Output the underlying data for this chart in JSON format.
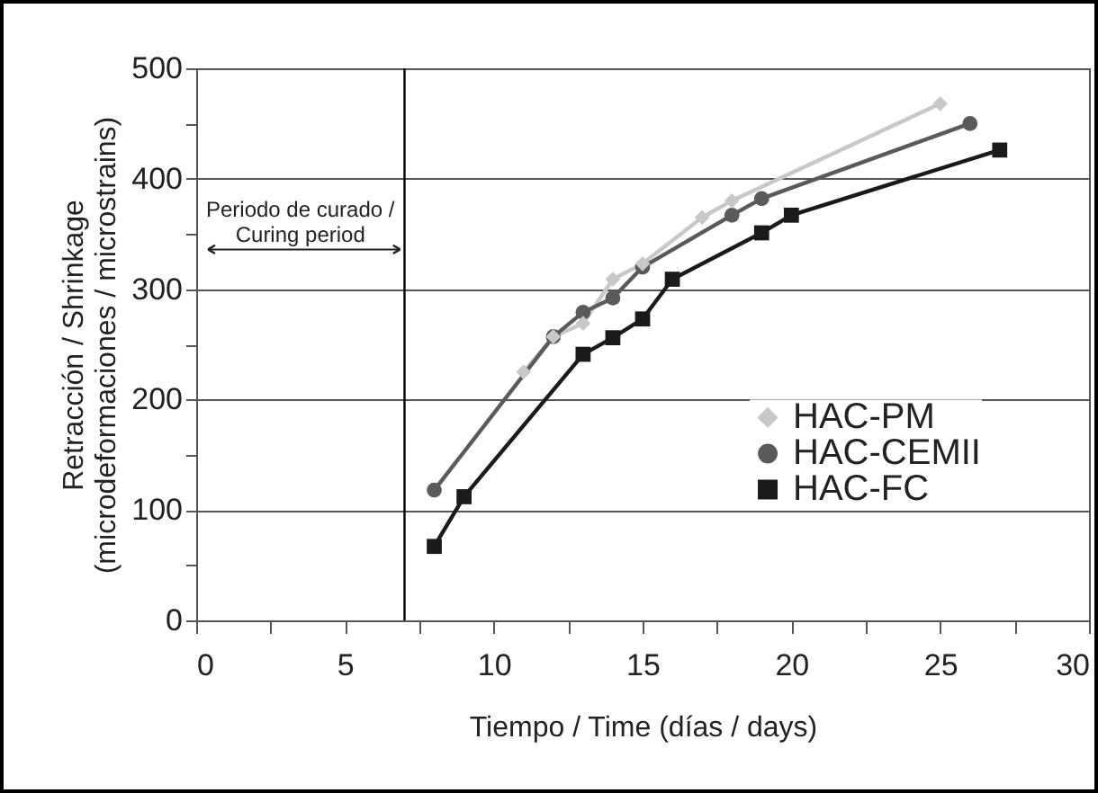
{
  "chart_data": {
    "type": "line",
    "xlabel": "Tiempo / Time (días / days)",
    "ylabel": "Retracción / Shrinkage (microdeformaciones / microstrains)",
    "xlim": [
      0,
      30
    ],
    "xticks": [
      0,
      {
        "value": 2.5,
        "label": null
      },
      5,
      {
        "value": 7.5,
        "label": null
      },
      10,
      {
        "value": 12.5,
        "label": null
      },
      15,
      {
        "value": 17.5,
        "label": null
      },
      20,
      {
        "value": 22.5,
        "label": null
      },
      25,
      {
        "value": 27.5,
        "label": null
      },
      30
    ],
    "ylim": [
      0,
      500
    ],
    "yticks": [
      0,
      {
        "value": 50,
        "label": null
      },
      100,
      {
        "value": 150,
        "label": null
      },
      200,
      {
        "value": 250,
        "label": null
      },
      300,
      {
        "value": 350,
        "label": null
      },
      400,
      {
        "value": 450,
        "label": null
      },
      500
    ],
    "grid": "y",
    "legend": "right",
    "line_style": "solid",
    "ref_lines": [
      {
        "axis": "x",
        "value": 7,
        "color": "#000000"
      }
    ],
    "annotations": [
      "Periodo de curado / Curing period"
    ],
    "series": [
      {
        "name": "HAC-PM",
        "color": "#c8c8c8",
        "marker": "diamond",
        "x": [
          11,
          12,
          13,
          14,
          15,
          17,
          18,
          25
        ],
        "values": [
          225,
          257,
          269,
          309,
          323,
          365,
          380,
          468
        ]
      },
      {
        "name": "HAC-CEMII",
        "color": "#5a5a5a",
        "marker": "circle",
        "x": [
          8,
          12,
          13,
          14,
          15,
          18,
          19,
          26
        ],
        "values": [
          118,
          257,
          279,
          292,
          320,
          367,
          382,
          450
        ]
      },
      {
        "name": "HAC-FC",
        "color": "#1a1a1a",
        "marker": "square",
        "x": [
          8,
          9,
          13,
          14,
          15,
          16,
          19,
          20,
          27
        ],
        "values": [
          67,
          112,
          241,
          256,
          273,
          309,
          351,
          367,
          426
        ]
      }
    ]
  }
}
